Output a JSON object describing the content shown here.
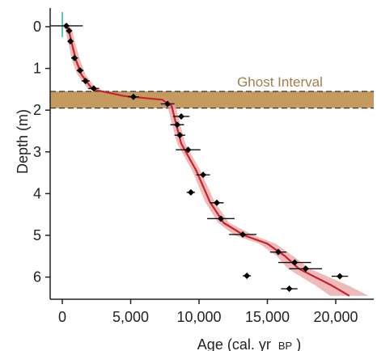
{
  "chart_data": {
    "type": "scatter",
    "title": "",
    "xlabel": "Age (cal. yr",
    "xlabel_unit": "BP",
    "xlabel_close": ")",
    "ylabel": "Depth (m)",
    "xlim": [
      -700,
      23000
    ],
    "ylim": [
      6.5,
      -0.15
    ],
    "y_inverted": true,
    "xticks": [
      0,
      5000,
      10000,
      15000,
      20000
    ],
    "xtick_labels": [
      "0",
      "5,000",
      "10,000",
      "15,000",
      "20,000"
    ],
    "yticks": [
      0,
      1,
      2,
      3,
      4,
      5,
      6
    ],
    "ytick_labels": [
      "0",
      "1",
      "2",
      "3",
      "4",
      "5",
      "6"
    ],
    "grid": false,
    "band": {
      "label": "Ghost Interval",
      "depth_top": 1.55,
      "depth_bottom": 1.95,
      "color": "#c49a5f",
      "label_color": "#a57b4a"
    },
    "age_model": {
      "line_color": "#c8232c",
      "envelope_color": "#e8a3a3",
      "points": [
        {
          "age": 150,
          "depth": -0.05
        },
        {
          "age": 450,
          "depth": 0.05
        },
        {
          "age": 700,
          "depth": 0.4
        },
        {
          "age": 1000,
          "depth": 0.8
        },
        {
          "age": 1400,
          "depth": 1.15
        },
        {
          "age": 2200,
          "depth": 1.5
        },
        {
          "age": 4500,
          "depth": 1.66
        },
        {
          "age": 7300,
          "depth": 1.75
        },
        {
          "age": 8000,
          "depth": 1.9
        },
        {
          "age": 8300,
          "depth": 2.3
        },
        {
          "age": 8700,
          "depth": 2.8
        },
        {
          "age": 9800,
          "depth": 3.45
        },
        {
          "age": 10800,
          "depth": 4.2
        },
        {
          "age": 11800,
          "depth": 4.7
        },
        {
          "age": 13300,
          "depth": 5.0
        },
        {
          "age": 15000,
          "depth": 5.2
        },
        {
          "age": 16300,
          "depth": 5.5
        },
        {
          "age": 17300,
          "depth": 5.8
        },
        {
          "age": 18500,
          "depth": 6.0
        },
        {
          "age": 19700,
          "depth": 6.2
        },
        {
          "age": 21000,
          "depth": 6.45
        }
      ],
      "envelope_halfwidth": [
        200,
        250,
        250,
        300,
        300,
        300,
        300,
        300,
        300,
        300,
        300,
        300,
        350,
        400,
        700,
        600,
        600,
        800,
        1000,
        1200,
        1400
      ]
    },
    "modern_marker": {
      "age": 0,
      "depth_top": -0.35,
      "depth_bottom": 0.25,
      "color": "#5bc6c8"
    },
    "series": [
      {
        "points": [
          {
            "age": 300,
            "depth": -0.02,
            "err": 1200
          },
          {
            "age": 500,
            "depth": 0.1,
            "err": 200
          },
          {
            "age": 600,
            "depth": 0.35,
            "err": 200
          },
          {
            "age": 900,
            "depth": 0.75,
            "err": 250
          },
          {
            "age": 1300,
            "depth": 1.05,
            "err": 250
          },
          {
            "age": 1700,
            "depth": 1.3,
            "err": 300
          },
          {
            "age": 2300,
            "depth": 1.48,
            "err": 400
          },
          {
            "age": 5200,
            "depth": 1.68,
            "err": 400
          },
          {
            "age": 7700,
            "depth": 1.85,
            "err": 500
          },
          {
            "age": 8700,
            "depth": 2.15,
            "err": 600
          },
          {
            "age": 8400,
            "depth": 2.35,
            "err": 500
          },
          {
            "age": 8600,
            "depth": 2.6,
            "err": 400
          },
          {
            "age": 9200,
            "depth": 2.95,
            "err": 900
          },
          {
            "age": 10300,
            "depth": 3.55,
            "err": 500
          },
          {
            "age": 9400,
            "depth": 3.97,
            "err": 300
          },
          {
            "age": 11300,
            "depth": 4.22,
            "err": 500
          },
          {
            "age": 11600,
            "depth": 4.6,
            "err": 1000
          },
          {
            "age": 13200,
            "depth": 4.98,
            "err": 1000
          },
          {
            "age": 15800,
            "depth": 5.4,
            "err": 600
          },
          {
            "age": 17000,
            "depth": 5.65,
            "err": 1200
          },
          {
            "age": 17800,
            "depth": 5.8,
            "err": 1200
          },
          {
            "age": 20300,
            "depth": 5.98,
            "err": 600
          },
          {
            "age": 13500,
            "depth": 5.97,
            "err": 300
          },
          {
            "age": 16600,
            "depth": 6.28,
            "err": 600
          }
        ]
      }
    ]
  }
}
